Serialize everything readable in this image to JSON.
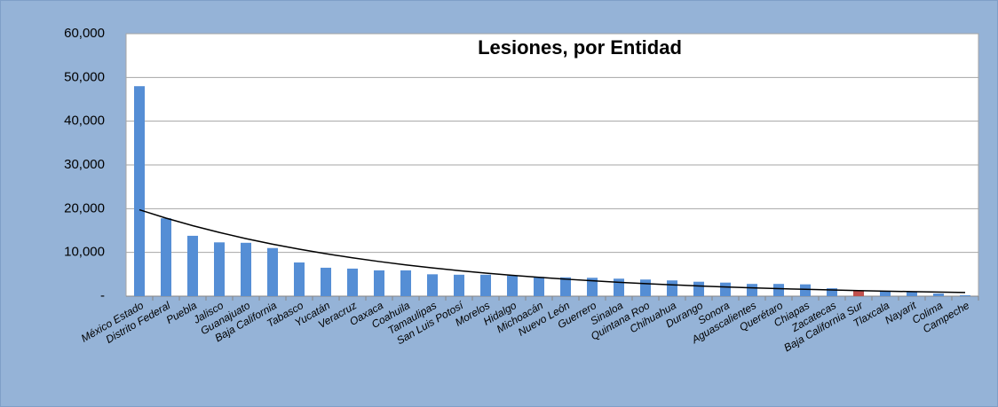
{
  "chart_data": {
    "type": "bar",
    "title": "Lesiones, por Entidad",
    "categories": [
      "México Estado",
      "Distrito Federal",
      "Puebla",
      "Jalisco",
      "Guanajuato",
      "Baja California",
      "Tabasco",
      "Yucatán",
      "Veracruz",
      "Oaxaca",
      "Coahuila",
      "Tamaulipas",
      "San Luis Potosí",
      "Morelos",
      "Hidalgo",
      "Michoacán",
      "Nuevo León",
      "Guerrero",
      "Sinaloa",
      "Quintana Roo",
      "Chihuahua",
      "Durango",
      "Sonora",
      "Aguascalientes",
      "Querétaro",
      "Chiapas",
      "Zacatecas",
      "Baja California Sur",
      "Tlaxcala",
      "Nayarit",
      "Colima",
      "Campeche"
    ],
    "values": [
      48000,
      17800,
      13800,
      12300,
      12200,
      11000,
      7700,
      6500,
      6300,
      5900,
      5900,
      5000,
      4900,
      4900,
      4700,
      4400,
      4300,
      4200,
      4000,
      3800,
      3600,
      3300,
      3100,
      2800,
      2800,
      2700,
      1800,
      1300,
      1200,
      1000,
      600,
      200
    ],
    "colors": [
      "#558ed5",
      "#558ed5",
      "#558ed5",
      "#558ed5",
      "#558ed5",
      "#558ed5",
      "#558ed5",
      "#558ed5",
      "#558ed5",
      "#558ed5",
      "#558ed5",
      "#558ed5",
      "#558ed5",
      "#558ed5",
      "#558ed5",
      "#558ed5",
      "#558ed5",
      "#558ed5",
      "#558ed5",
      "#558ed5",
      "#558ed5",
      "#558ed5",
      "#558ed5",
      "#558ed5",
      "#558ed5",
      "#558ed5",
      "#558ed5",
      "#c0504d",
      "#558ed5",
      "#558ed5",
      "#558ed5",
      "#558ed5"
    ],
    "ylim": [
      0,
      60000
    ],
    "yticks": [
      {
        "value": 0,
        "label": "-"
      },
      {
        "value": 10000,
        "label": "10,000"
      },
      {
        "value": 20000,
        "label": "20,000"
      },
      {
        "value": 30000,
        "label": "30,000"
      },
      {
        "value": 40000,
        "label": "40,000"
      },
      {
        "value": 50000,
        "label": "50,000"
      },
      {
        "value": 60000,
        "label": "60,000"
      }
    ],
    "grid": true,
    "trendline": {
      "kind": "exponential",
      "color": "#000000"
    }
  }
}
